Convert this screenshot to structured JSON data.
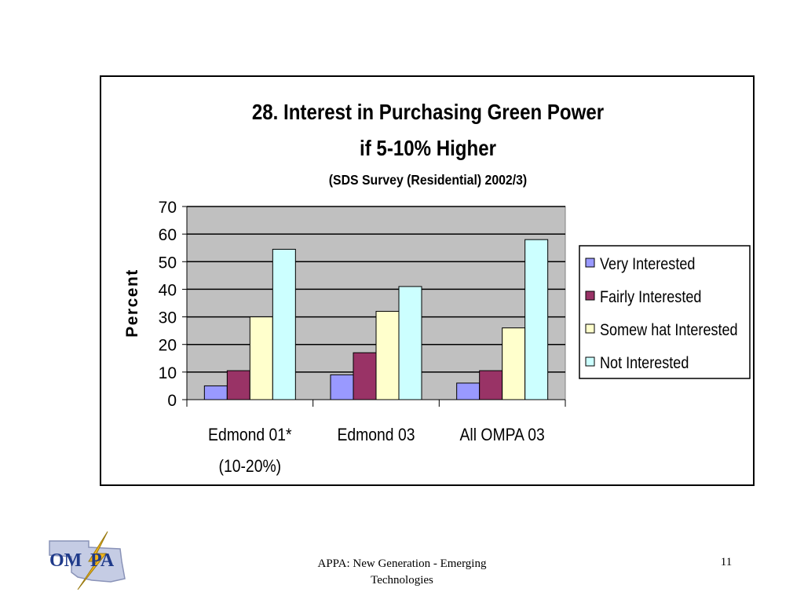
{
  "chart_data": {
    "type": "bar",
    "title": "28. Interest in Purchasing Green Power",
    "title_line2": "if 5-10% Higher",
    "subtitle": "(SDS Survey (Residential) 2002/3)",
    "ylabel": "Percent",
    "xlabel": "",
    "ylim": [
      0,
      70
    ],
    "yticks": [
      "0",
      "10",
      "20",
      "30",
      "40",
      "50",
      "60",
      "70"
    ],
    "grid": true,
    "legend_position": "right",
    "categories": [
      "Edmond 01*",
      "Edmond 03",
      "All OMPA 03"
    ],
    "category_sublabels": [
      "(10-20%)",
      "",
      ""
    ],
    "series": [
      {
        "name": "Very Interested",
        "color": "#9999FF",
        "values": [
          5,
          9,
          6
        ]
      },
      {
        "name": "Fairly Interested",
        "color": "#993366",
        "values": [
          10.5,
          17,
          10.5
        ]
      },
      {
        "name": "Somew hat Interested",
        "color": "#FFFFCC",
        "values": [
          30,
          32,
          26
        ]
      },
      {
        "name": "Not Interested",
        "color": "#CCFFFF",
        "values": [
          54.5,
          41,
          58
        ]
      }
    ],
    "plot_background": "#C0C0C0"
  },
  "footer": {
    "line1": "APPA: New Generation - Emerging",
    "line2": "Technologies",
    "slide_number": "11"
  },
  "logo": {
    "text": "OMPA"
  }
}
